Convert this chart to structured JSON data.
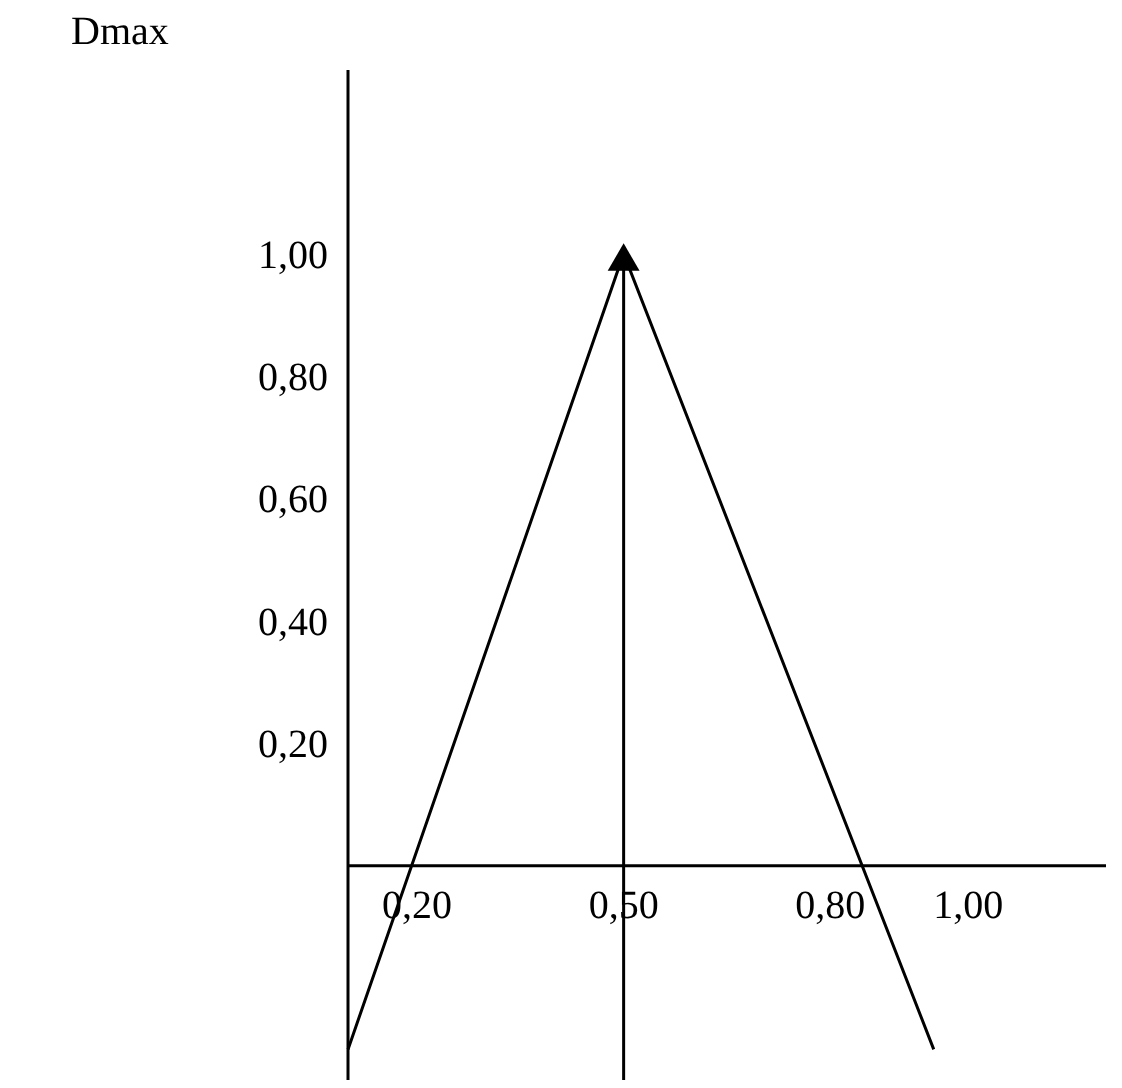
{
  "chart_data": {
    "type": "line",
    "ylabel": "Dmax",
    "xlim": [
      0.1,
      1.2
    ],
    "ylim": [
      -0.35,
      1.3
    ],
    "xticks": [
      {
        "value": 0.2,
        "label": "0,20"
      },
      {
        "value": 0.5,
        "label": "0,50"
      },
      {
        "value": 0.8,
        "label": "0,80"
      },
      {
        "value": 1.0,
        "label": "1,00"
      }
    ],
    "yticks": [
      {
        "value": 0.2,
        "label": "0,20"
      },
      {
        "value": 0.4,
        "label": "0,40"
      },
      {
        "value": 0.6,
        "label": "0,60"
      },
      {
        "value": 0.8,
        "label": "0,80"
      },
      {
        "value": 1.0,
        "label": "1,00"
      }
    ],
    "series": [
      {
        "color": "#000000",
        "x": [
          0.1,
          0.5,
          0.95
        ],
        "values": [
          -0.3,
          1.0,
          -0.3
        ]
      },
      {
        "type": "scatter",
        "color": "#000000",
        "marker": "triangle",
        "x": [
          0.5
        ],
        "values": [
          1.0
        ]
      }
    ],
    "ref_lines": [
      {
        "axis": "x",
        "value": 0.5,
        "color": "#000000"
      }
    ],
    "grid": false
  }
}
